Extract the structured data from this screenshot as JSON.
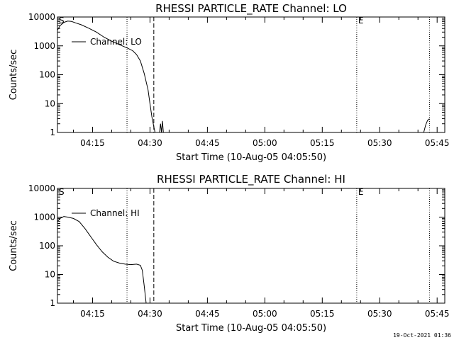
{
  "footer_text": "19-Oct-2021 01:36",
  "chart_data": [
    {
      "type": "line",
      "title": "RHESSI PARTICLE_RATE Channel: LO",
      "xlabel": "Start Time (10-Aug-05 04:05:50)",
      "ylabel": "Counts/sec",
      "yscale": "log",
      "ylim": [
        1,
        10000
      ],
      "yticks": [
        1,
        10,
        100,
        1000,
        10000
      ],
      "yticklabels": [
        "1",
        "10",
        "100",
        "1000",
        "10000"
      ],
      "xlim": [
        "04:05:50",
        "05:47:00"
      ],
      "xticks": [
        "04:15",
        "04:30",
        "04:45",
        "05:00",
        "05:15",
        "05:30",
        "05:45"
      ],
      "legend": {
        "label": "Channel: LO",
        "placement": "top-left"
      },
      "markers": [
        {
          "time": "04:05:50",
          "label": "S",
          "style": "none"
        },
        {
          "time": "04:24:00",
          "label": "",
          "style": "dotted"
        },
        {
          "time": "04:31:00",
          "label": "",
          "style": "dashed"
        },
        {
          "time": "05:24:00",
          "label": "E",
          "style": "dotted"
        },
        {
          "time": "05:43:00",
          "label": "",
          "style": "dotted"
        }
      ],
      "segments": [
        [
          [
            "04:05:50",
            3500
          ],
          [
            "04:06:30",
            5000
          ],
          [
            "04:07:30",
            6500
          ],
          [
            "04:08:30",
            7200
          ],
          [
            "04:09:30",
            7000
          ],
          [
            "04:10:30",
            6300
          ],
          [
            "04:12:00",
            5400
          ],
          [
            "04:14:00",
            4100
          ],
          [
            "04:16:00",
            3000
          ],
          [
            "04:18:00",
            2000
          ],
          [
            "04:20:00",
            1450
          ],
          [
            "04:22:00",
            1100
          ],
          [
            "04:24:00",
            850
          ],
          [
            "04:25:30",
            680
          ],
          [
            "04:26:30",
            500
          ],
          [
            "04:27:30",
            300
          ],
          [
            "04:28:30",
            110
          ],
          [
            "04:29:30",
            30
          ],
          [
            "04:30:00",
            10
          ],
          [
            "04:30:30",
            3.5
          ],
          [
            "04:31:00",
            1.6
          ],
          [
            "04:31:20",
            1
          ]
        ],
        [
          [
            "04:32:30",
            1
          ],
          [
            "04:32:45",
            2
          ],
          [
            "04:33:00",
            1
          ],
          [
            "04:33:15",
            2.5
          ],
          [
            "04:33:30",
            1
          ]
        ],
        [
          [
            "05:41:30",
            1
          ],
          [
            "05:42:00",
            1.8
          ],
          [
            "05:42:30",
            2.6
          ],
          [
            "05:43:00",
            3
          ]
        ]
      ]
    },
    {
      "type": "line",
      "title": "RHESSI PARTICLE_RATE Channel: HI",
      "xlabel": "Start Time (10-Aug-05 04:05:50)",
      "ylabel": "Counts/sec",
      "yscale": "log",
      "ylim": [
        1,
        10000
      ],
      "yticks": [
        1,
        10,
        100,
        1000,
        10000
      ],
      "yticklabels": [
        "1",
        "10",
        "100",
        "1000",
        "10000"
      ],
      "xlim": [
        "04:05:50",
        "05:47:00"
      ],
      "xticks": [
        "04:15",
        "04:30",
        "04:45",
        "05:00",
        "05:15",
        "05:30",
        "05:45"
      ],
      "legend": {
        "label": "Channel: HI",
        "placement": "top-left"
      },
      "markers": [
        {
          "time": "04:05:50",
          "label": "S",
          "style": "none"
        },
        {
          "time": "04:24:00",
          "label": "",
          "style": "dotted"
        },
        {
          "time": "04:31:00",
          "label": "",
          "style": "dashed"
        },
        {
          "time": "05:24:00",
          "label": "E",
          "style": "dotted"
        },
        {
          "time": "05:43:00",
          "label": "",
          "style": "dotted"
        }
      ],
      "segments": [
        [
          [
            "04:05:50",
            700
          ],
          [
            "04:06:30",
            900
          ],
          [
            "04:07:30",
            1050
          ],
          [
            "04:08:30",
            1000
          ],
          [
            "04:10:00",
            900
          ],
          [
            "04:11:30",
            700
          ],
          [
            "04:13:00",
            400
          ],
          [
            "04:14:30",
            210
          ],
          [
            "04:16:00",
            110
          ],
          [
            "04:17:30",
            62
          ],
          [
            "04:19:00",
            40
          ],
          [
            "04:20:30",
            29
          ],
          [
            "04:22:00",
            25
          ],
          [
            "04:23:30",
            23
          ],
          [
            "04:25:00",
            22
          ],
          [
            "04:26:30",
            23
          ],
          [
            "04:27:30",
            21
          ],
          [
            "04:28:00",
            14
          ],
          [
            "04:28:30",
            4
          ],
          [
            "04:29:00",
            1
          ]
        ]
      ]
    }
  ]
}
